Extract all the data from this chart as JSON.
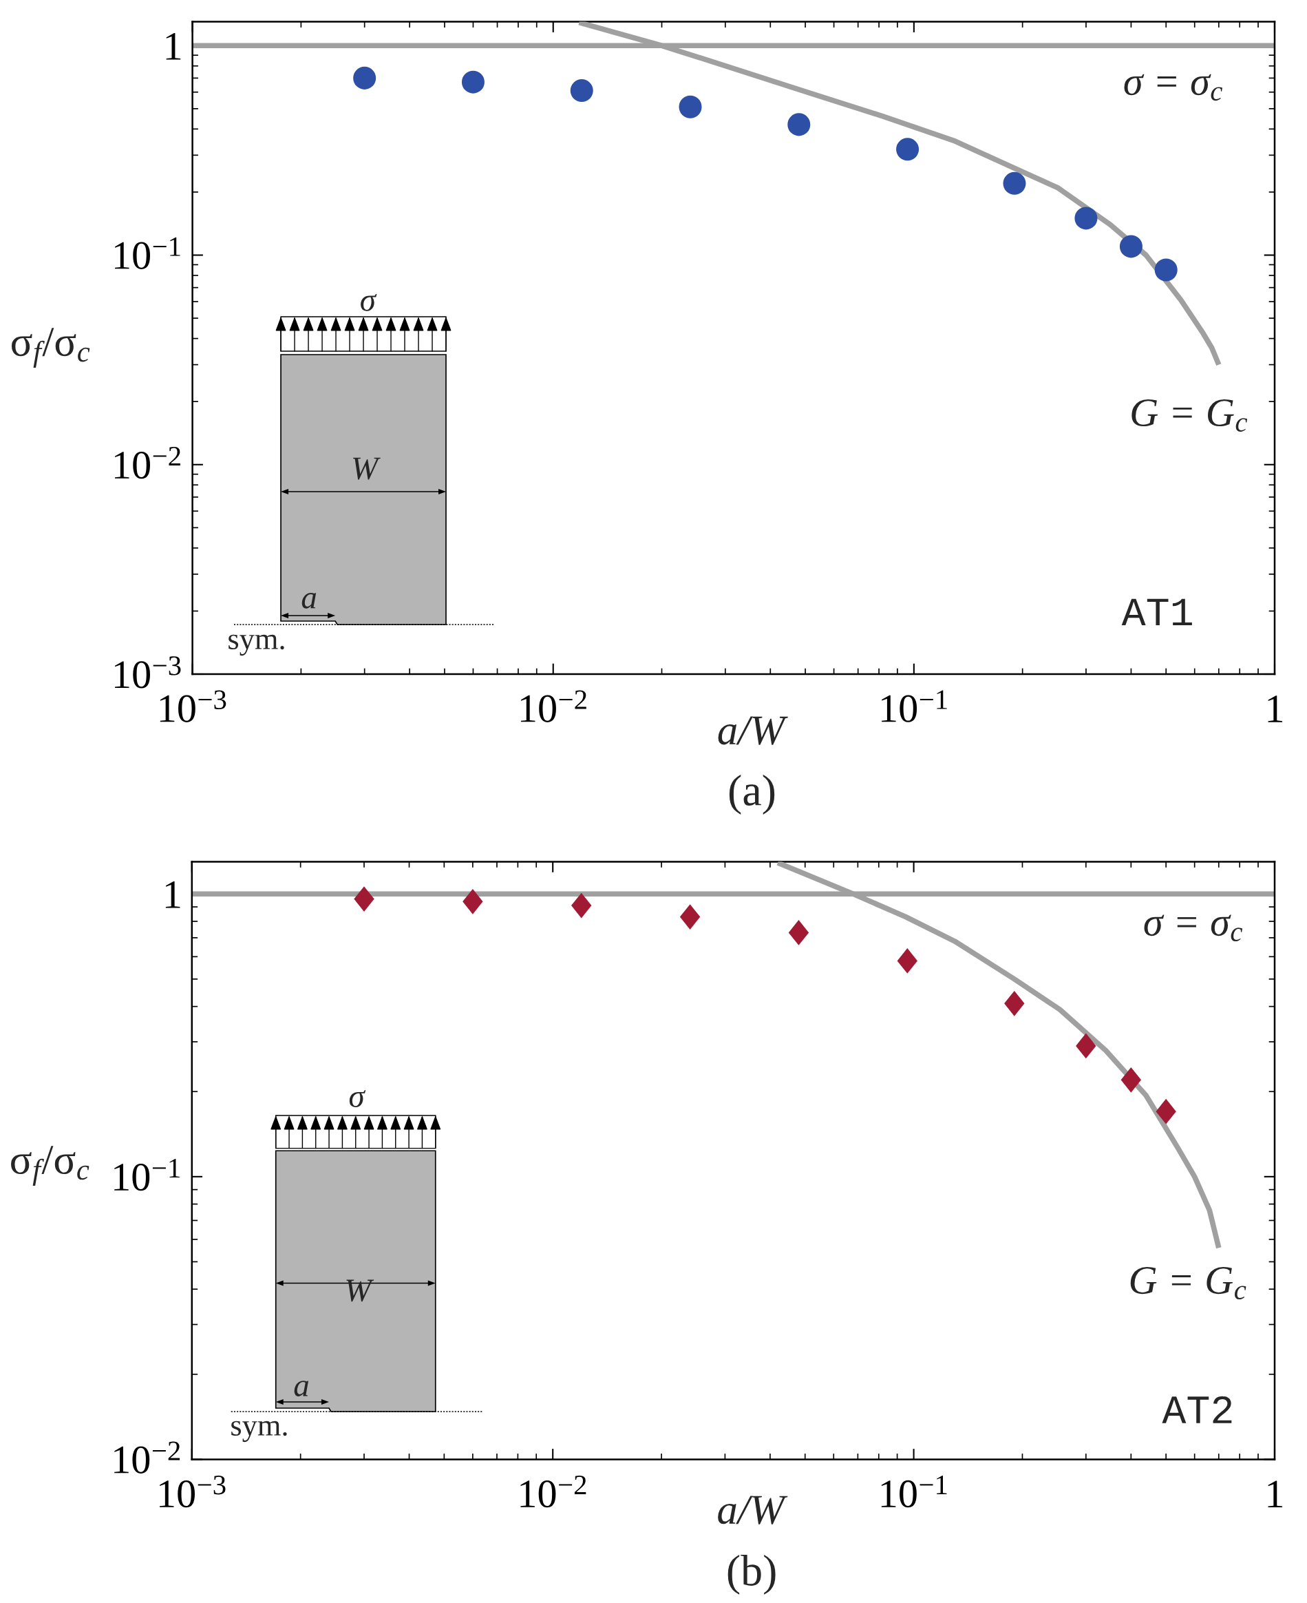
{
  "chart_data": [
    {
      "type": "scatter",
      "xlabel": "a/W",
      "ylabel": "σ$_{f}$/σ$_{c}$",
      "log": "xy",
      "marker": "circle",
      "xlim": [
        0.001,
        1
      ],
      "ylim": [
        0.001,
        1.3
      ],
      "xticks": [
        {
          "value": 0.001,
          "label": "10$^{−3}$"
        },
        {
          "value": 0.01,
          "label": "10$^{−2}$"
        },
        {
          "value": 0.1,
          "label": "10$^{−1}$"
        },
        1
      ],
      "yticks": [
        {
          "value": 0.001,
          "label": "10$^{−3}$"
        },
        {
          "value": 0.01,
          "label": "10$^{−2}$"
        },
        {
          "value": 0.1,
          "label": "10$^{−1}$"
        },
        1
      ],
      "series": [
        {
          "color": "#2d4fa6",
          "x": [
            0.003,
            0.006,
            0.012,
            0.024,
            0.048,
            0.096,
            0.19,
            0.3,
            0.4,
            0.5
          ],
          "values": [
            0.7,
            0.67,
            0.61,
            0.51,
            0.42,
            0.32,
            0.22,
            0.15,
            0.11,
            0.085
          ]
        },
        {
          "type": "line",
          "marker": "none",
          "name": "G = G$_{c}$",
          "color": "#a0a0a0",
          "x": [
            0.0118,
            0.02,
            0.033,
            0.052,
            0.082,
            0.13,
            0.19,
            0.25,
            0.35,
            0.44,
            0.55,
            0.63,
            0.67,
            0.7
          ],
          "values": [
            1.29,
            1.0,
            0.76,
            0.59,
            0.46,
            0.35,
            0.26,
            0.21,
            0.14,
            0.1,
            0.061,
            0.043,
            0.036,
            0.03
          ]
        }
      ],
      "ref_lines": [
        {
          "axis": "y",
          "value": 1,
          "label": "σ = σ$_{c}$",
          "color": "#a0a0a0"
        }
      ],
      "annotations": [
        "AT1",
        "(a)",
        "σ",
        "W",
        "a",
        "sym."
      ]
    },
    {
      "type": "scatter",
      "xlabel": "a/W",
      "ylabel": "σ$_{f}$/σ$_{c}$",
      "log": "xy",
      "marker": "diamond",
      "xlim": [
        0.001,
        1
      ],
      "ylim": [
        0.01,
        1.3
      ],
      "xticks": [
        {
          "value": 0.001,
          "label": "10$^{−3}$"
        },
        {
          "value": 0.01,
          "label": "10$^{−2}$"
        },
        {
          "value": 0.1,
          "label": "10$^{−1}$"
        },
        1
      ],
      "yticks": [
        {
          "value": 0.01,
          "label": "10$^{−2}$"
        },
        {
          "value": 0.1,
          "label": "10$^{−1}$"
        },
        1
      ],
      "series": [
        {
          "color": "#a11a33",
          "x": [
            0.003,
            0.006,
            0.012,
            0.024,
            0.048,
            0.096,
            0.19,
            0.3,
            0.4,
            0.5
          ],
          "values": [
            0.96,
            0.94,
            0.91,
            0.83,
            0.73,
            0.58,
            0.41,
            0.29,
            0.22,
            0.17
          ]
        },
        {
          "type": "line",
          "marker": "none",
          "name": "G = G$_{c}$",
          "color": "#a0a0a0",
          "x": [
            0.042,
            0.068,
            0.095,
            0.13,
            0.19,
            0.254,
            0.34,
            0.44,
            0.54,
            0.6,
            0.66,
            0.7
          ],
          "values": [
            1.29,
            1.0,
            0.83,
            0.68,
            0.5,
            0.39,
            0.28,
            0.194,
            0.126,
            0.1,
            0.076,
            0.056
          ]
        }
      ],
      "ref_lines": [
        {
          "axis": "y",
          "value": 1,
          "label": "σ = σ$_{c}$",
          "color": "#a0a0a0"
        }
      ],
      "annotations": [
        "AT2",
        "(b)",
        "σ",
        "W",
        "a",
        "sym."
      ]
    }
  ]
}
